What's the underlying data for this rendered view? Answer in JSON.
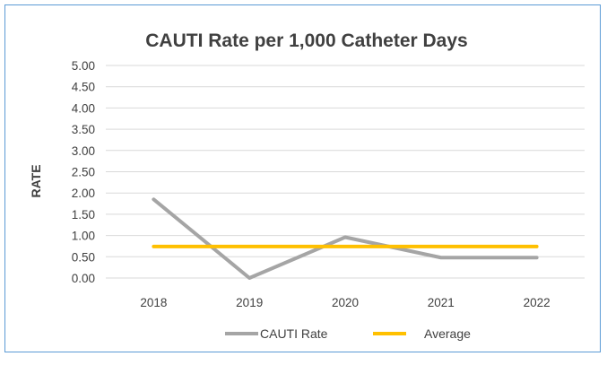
{
  "chart_data": {
    "type": "line",
    "title": "CAUTI Rate per 1,000 Catheter Days",
    "xlabel": "",
    "ylabel": "RATE",
    "categories": [
      "2018",
      "2019",
      "2020",
      "2021",
      "2022"
    ],
    "ylim": [
      0,
      5
    ],
    "ytick_step": 0.5,
    "yticks": [
      "0.00",
      "0.50",
      "1.00",
      "1.50",
      "2.00",
      "2.50",
      "3.00",
      "3.50",
      "4.00",
      "4.50",
      "5.00"
    ],
    "grid": true,
    "legend_position": "bottom",
    "series": [
      {
        "name": "CAUTI Rate",
        "values": [
          1.85,
          0.0,
          0.96,
          0.48,
          0.48
        ],
        "color": "#a5a5a5"
      },
      {
        "name": "Average",
        "values": [
          0.74,
          0.74,
          0.74,
          0.74,
          0.74
        ],
        "color": "#ffc000"
      }
    ]
  },
  "colors": {
    "frame_border": "#5b9bd5",
    "gridline": "#d9d9d9",
    "text": "#404040"
  }
}
